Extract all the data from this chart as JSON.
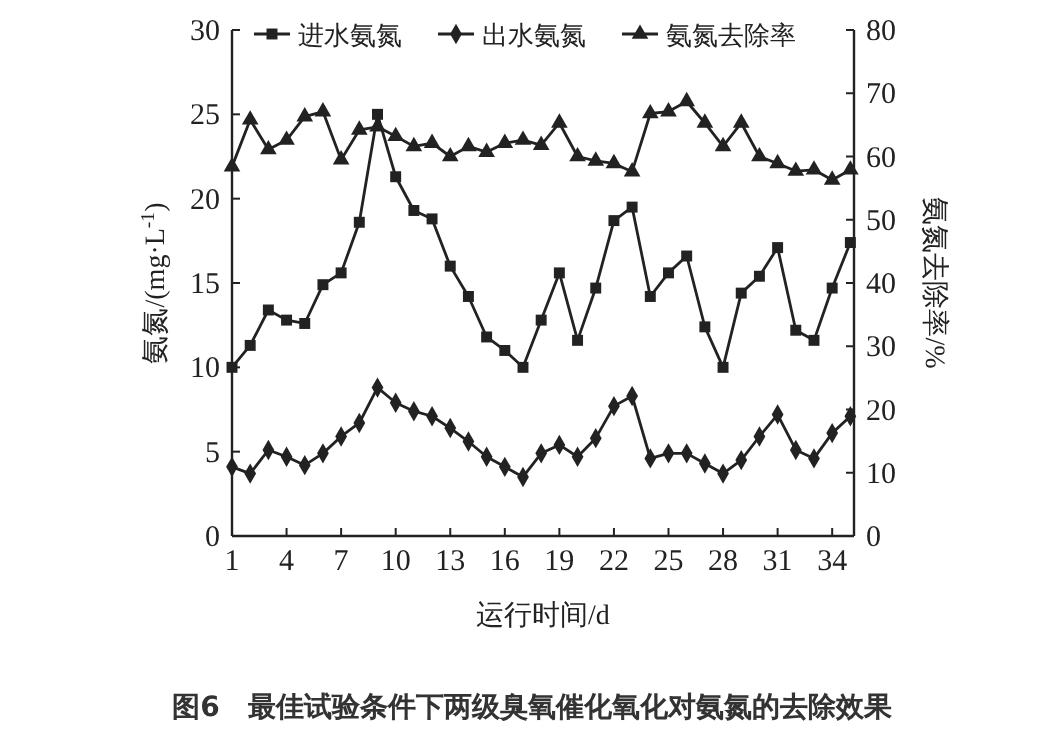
{
  "chart_data": {
    "type": "line",
    "xlabel": "运行时间/d",
    "ylabel": "氨氮/(mg·L$^{-1}$)",
    "y2label": "氨氮去除率/%",
    "x": [
      1,
      2,
      3,
      4,
      5,
      6,
      7,
      8,
      9,
      10,
      11,
      12,
      13,
      14,
      15,
      16,
      17,
      18,
      19,
      20,
      21,
      22,
      23,
      24,
      25,
      26,
      27,
      28,
      29,
      30,
      31,
      32,
      33,
      34,
      35
    ],
    "xlim": [
      1,
      35.2
    ],
    "xticks": [
      1,
      4,
      7,
      10,
      13,
      16,
      19,
      22,
      25,
      28,
      31,
      34
    ],
    "ylim": [
      0,
      30
    ],
    "yticks": [
      0,
      5,
      10,
      15,
      20,
      25,
      30
    ],
    "y2lim": [
      0,
      80
    ],
    "y2ticks": [
      0,
      10,
      20,
      30,
      40,
      50,
      60,
      70,
      80
    ],
    "legend": "top",
    "grid": false,
    "line_style": "solid",
    "series": [
      {
        "name": "进水氨氮",
        "color": "#222222",
        "marker": "square",
        "values": [
          10.0,
          11.3,
          13.4,
          12.8,
          12.6,
          14.9,
          15.6,
          18.6,
          25.0,
          21.3,
          19.3,
          18.8,
          16.0,
          14.2,
          11.8,
          11.0,
          10.0,
          12.8,
          15.6,
          11.6,
          14.7,
          18.7,
          19.5,
          14.2,
          15.6,
          16.6,
          12.4,
          10.0,
          14.4,
          15.4,
          17.1,
          12.2,
          11.6,
          14.7,
          17.4
        ]
      },
      {
        "name": "出水氨氮",
        "color": "#222222",
        "marker": "diamond",
        "values": [
          4.1,
          3.7,
          5.1,
          4.7,
          4.2,
          4.9,
          5.9,
          6.7,
          8.8,
          7.9,
          7.4,
          7.1,
          6.4,
          5.6,
          4.7,
          4.1,
          3.5,
          4.9,
          5.4,
          4.7,
          5.8,
          7.7,
          8.3,
          4.6,
          4.9,
          4.9,
          4.3,
          3.7,
          4.5,
          5.9,
          7.2,
          5.1,
          4.6,
          6.1,
          7.1
        ]
      },
      {
        "name": "氨氮去除率",
        "color": "#222222",
        "marker": "triangle",
        "axis": "y2",
        "values": [
          58.4,
          65.8,
          61.1,
          62.6,
          66.3,
          67.1,
          59.5,
          64.2,
          64.7,
          63.2,
          61.6,
          62.1,
          60.0,
          61.6,
          60.7,
          62.1,
          62.6,
          61.8,
          65.3,
          60.0,
          59.3,
          58.9,
          57.6,
          66.8,
          67.1,
          68.7,
          65.3,
          61.6,
          65.3,
          60.0,
          58.9,
          57.7,
          57.9,
          56.3,
          57.9
        ]
      }
    ],
    "annotations": [
      "图6　最佳试验条件下两级臭氧催化氧化对氨氮的去除效果"
    ]
  }
}
